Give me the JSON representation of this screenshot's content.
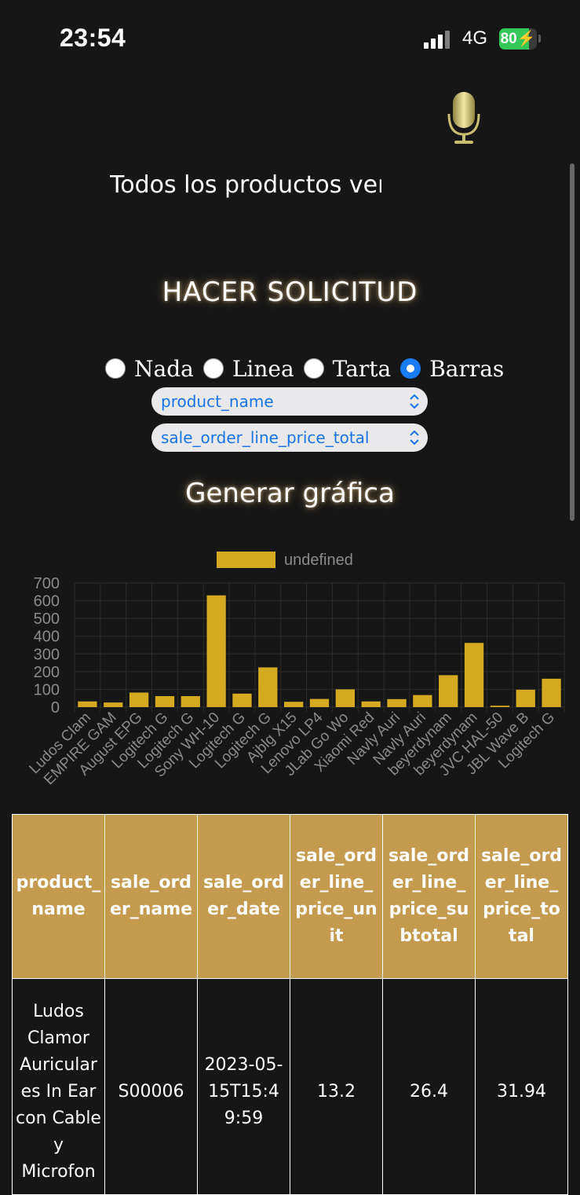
{
  "status_bar": {
    "time": "23:54",
    "network": "4G",
    "battery": "80"
  },
  "query_text": "Todos los productos vend",
  "request_button": "HACER SOLICITUD",
  "chart_types": [
    {
      "label": "Nada",
      "checked": false
    },
    {
      "label": "Linea",
      "checked": false
    },
    {
      "label": "Tarta",
      "checked": false
    },
    {
      "label": "Barras",
      "checked": true
    }
  ],
  "selects": {
    "x_field": "product_name",
    "y_field": "sale_order_line_price_total"
  },
  "generate_button": "Generar gráfica",
  "colors": {
    "accent": "#d4aa21",
    "header": "#c39a4e",
    "background": "#161616"
  },
  "chart_data": {
    "type": "bar",
    "legend": "undefined",
    "legend_position": "top",
    "categories": [
      "Ludos Clam",
      "EMPIRE GAM",
      "August EPG",
      "Logitech G",
      "Logitech G",
      "Sony WH-10",
      "Logitech G",
      "Logitech G",
      "Ajblg X15",
      "Lenovo LP4",
      "JLab Go Wo",
      "Xiaomi Red",
      "Navly Auri",
      "Navly Auri",
      "beyerdynam",
      "beyerdynam",
      "JVC HAL-50",
      "JBL Wave B",
      "Logitech G"
    ],
    "values": [
      32,
      26,
      82,
      62,
      62,
      630,
      76,
      224,
      30,
      46,
      100,
      32,
      45,
      68,
      180,
      362,
      8,
      98,
      160
    ],
    "ylim": [
      0,
      700
    ],
    "yticks": [
      "700",
      "600",
      "500",
      "400",
      "300",
      "200",
      "100",
      "0"
    ],
    "grid": true
  },
  "table": {
    "headers": [
      "product_name",
      "sale_order_name",
      "sale_order_date",
      "sale_order_line_price_unit",
      "sale_order_line_price_subtotal",
      "sale_order_line_price_total"
    ],
    "rows": [
      [
        "Ludos Clamor Auriculares In Ear con Cable y Microfon",
        "S00006",
        "2023-05-15T15:49:59",
        "13.2",
        "26.4",
        "31.94"
      ]
    ]
  }
}
